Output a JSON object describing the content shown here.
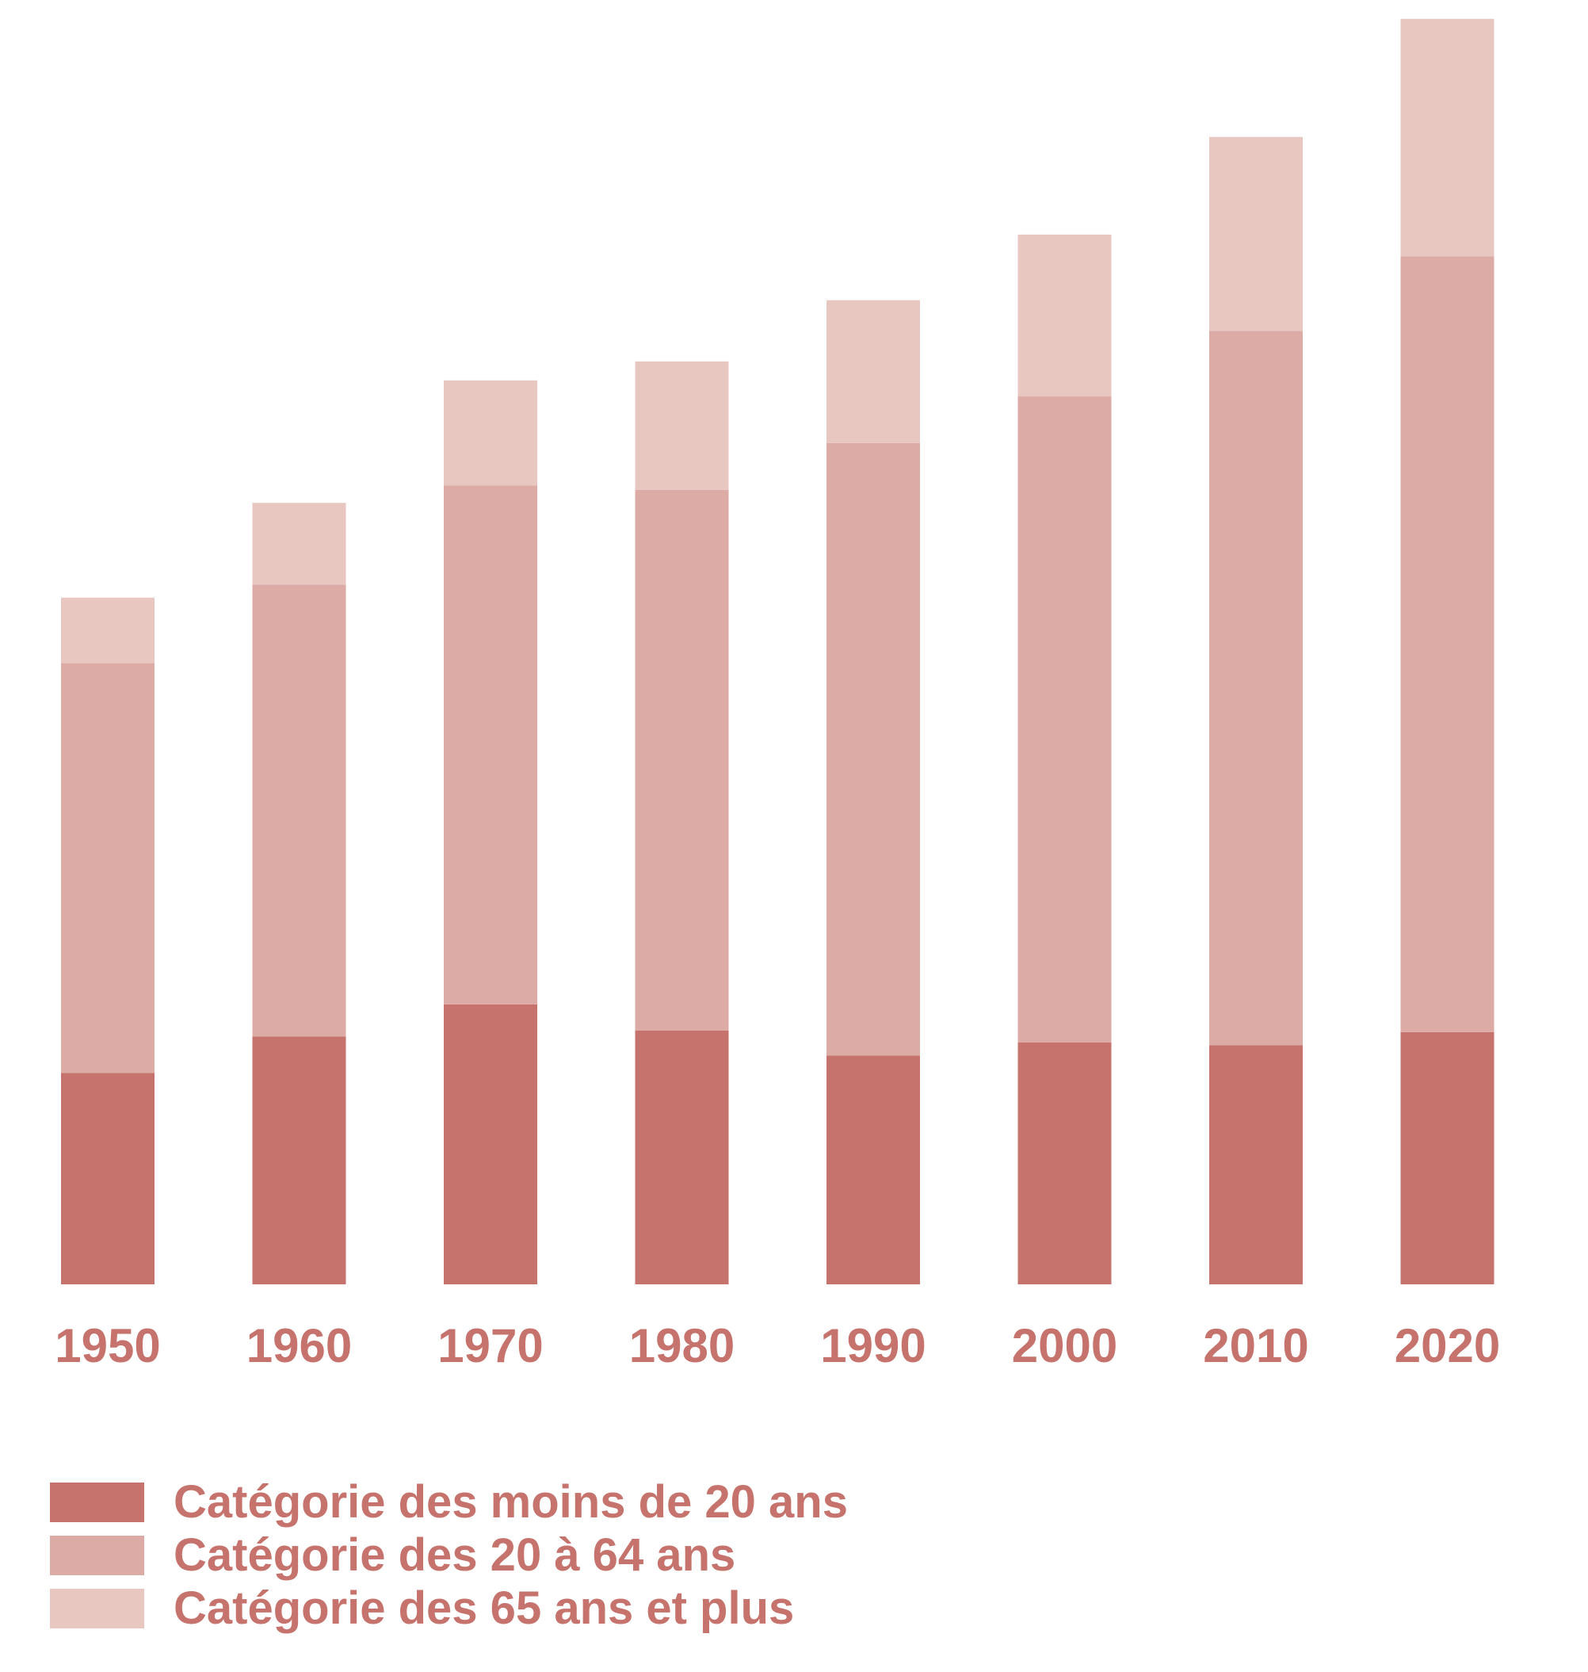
{
  "chart_data": {
    "type": "bar",
    "stacked": true,
    "title": "",
    "xlabel": "",
    "ylabel": "",
    "y_axis_shown": false,
    "grid": false,
    "legend_placement": "bottom-left",
    "categories": [
      "1950",
      "1960",
      "1970",
      "1980",
      "1990",
      "2000",
      "2010",
      "2020"
    ],
    "series": [
      {
        "name": "Catégorie des moins de 20 ans",
        "color": "#c5736c",
        "values": [
          1.45,
          1.7,
          1.92,
          1.74,
          1.57,
          1.66,
          1.64,
          1.73
        ]
      },
      {
        "name": "Catégorie des 20 à 64 ans",
        "color": "#ddaba5",
        "values": [
          2.81,
          3.1,
          3.56,
          3.71,
          4.2,
          4.43,
          4.9,
          5.32
        ]
      },
      {
        "name": "Catégorie des 65 ans et plus",
        "color": "#e8c7c0",
        "values": [
          0.45,
          0.56,
          0.72,
          0.88,
          0.98,
          1.11,
          1.33,
          1.63
        ]
      }
    ],
    "label_color": "#c5736c"
  }
}
